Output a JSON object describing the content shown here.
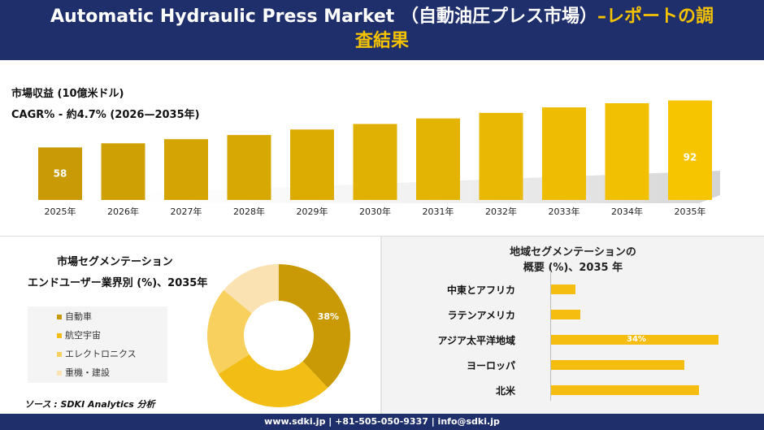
{
  "header": {
    "title_line1_white": "Automatic Hydraulic Press Market （自動油圧プレス市場）",
    "title_line1_accent": "–レポートの調",
    "title_line2_accent": "査結果"
  },
  "metrics": {
    "revenue_label": "市場収益 (10億米ドル)",
    "cagr_label": "CAGR% - 約4.7% (2026—2035年)"
  },
  "chart_data": [
    {
      "type": "bar",
      "categories": [
        "2025年",
        "2026年",
        "2027年",
        "2028年",
        "2029年",
        "2030年",
        "2031年",
        "2032年",
        "2033年",
        "2034年",
        "2035年"
      ],
      "values": [
        58,
        61,
        64,
        67,
        71,
        75,
        79,
        83,
        87,
        90,
        92
      ],
      "data_labels": {
        "0": "58",
        "10": "92"
      },
      "ylim": [
        0,
        100
      ],
      "grid": false,
      "colors": [
        "#c99a05",
        "#cfa003",
        "#d3a404",
        "#d7a803",
        "#dcac03",
        "#e0b003",
        "#e4b404",
        "#e9b804",
        "#edbc03",
        "#f2c003",
        "#f7c500"
      ]
    },
    {
      "type": "pie",
      "title": "市場セグメンテーション",
      "subtitle": "エンドユーザー業界別 (%)、2035年",
      "labels": [
        "自動車",
        "航空宇宙",
        "エレクトロニクス",
        "重機・建設"
      ],
      "values": [
        38,
        28,
        20,
        14
      ],
      "colors": [
        "#c99a05",
        "#f2bd14",
        "#f7d05e",
        "#fbe2b3"
      ],
      "data_labels": {
        "0": "38%"
      },
      "donut": true
    },
    {
      "type": "bar",
      "orientation": "horizontal",
      "title_line1": "地域セグメンテーションの",
      "title_line2": "概要 (%)、2035 年",
      "categories": [
        "中東とアフリカ",
        "ラテンアメリカ",
        "アジア太平洋地域",
        "ヨーロッパ",
        "北米"
      ],
      "values": [
        5,
        6,
        34,
        27,
        30
      ],
      "data_labels": {
        "2": "34%"
      },
      "xlim": [
        0,
        40
      ],
      "color": "#f5bd0f"
    }
  ],
  "source": "ソース : SDKI Analytics 分析",
  "footer": "www.sdki.jp | +81-505-050-9337 | info@sdki.jp"
}
